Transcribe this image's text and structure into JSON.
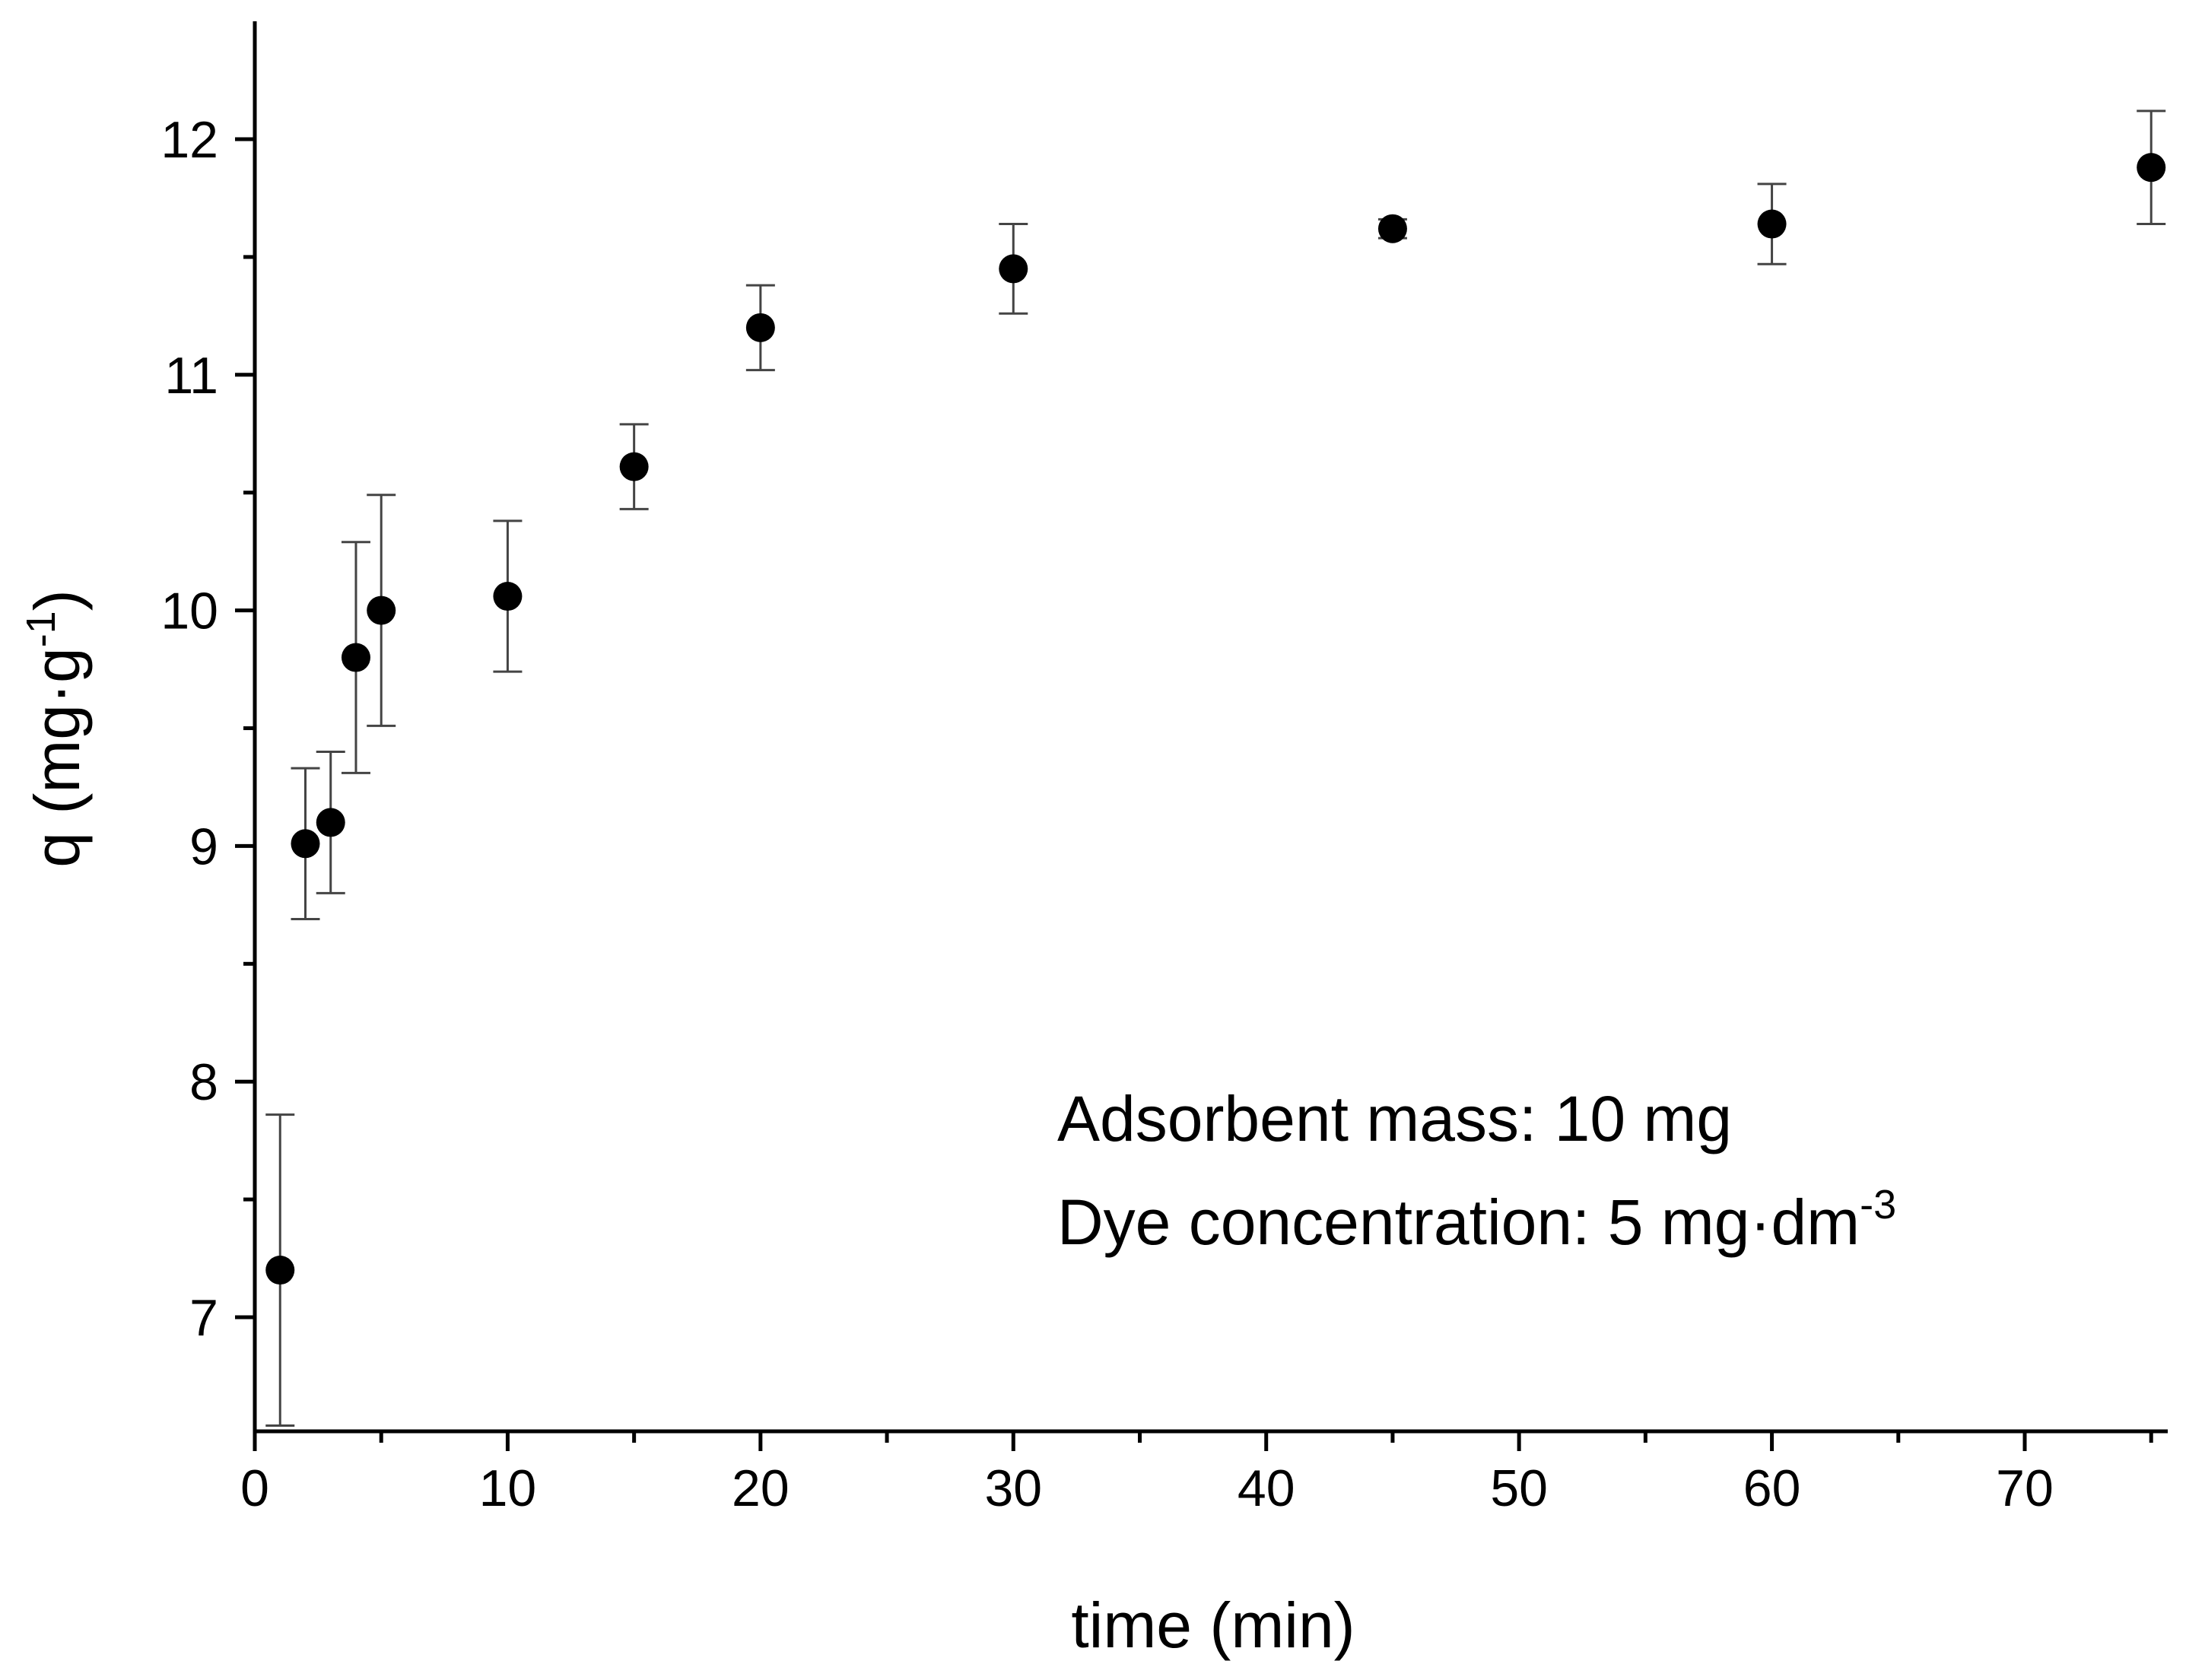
{
  "chart_data": {
    "type": "scatter",
    "title": "",
    "xlabel": "time (min)",
    "ylabel": {
      "main": "q (mg·g",
      "sup": "-1",
      "close": ")"
    },
    "xlim": [
      0,
      76
    ],
    "ylim": [
      6.5,
      12.5
    ],
    "x_ticks": [
      0,
      10,
      20,
      30,
      40,
      50,
      60,
      70
    ],
    "x_minor_ticks": [
      5,
      15,
      25,
      35,
      45,
      55,
      65,
      75
    ],
    "y_ticks": [
      7,
      8,
      9,
      10,
      11,
      12
    ],
    "y_minor_ticks": [
      7.5,
      8.5,
      9.5,
      10.5,
      11.5
    ],
    "grid": false,
    "legend": "none",
    "marker_color": "#000000",
    "error_bar_color": "#444444",
    "series": [
      {
        "x": [
          1,
          2,
          3,
          4,
          5,
          10,
          15,
          20,
          30,
          45,
          60,
          75
        ],
        "y": [
          7.2,
          9.01,
          9.1,
          9.8,
          10.0,
          10.06,
          10.61,
          11.2,
          11.45,
          11.62,
          11.64,
          11.88
        ],
        "error": [
          0.66,
          0.32,
          0.3,
          0.49,
          0.49,
          0.32,
          0.18,
          0.18,
          0.19,
          0.04,
          0.17,
          0.24
        ]
      }
    ],
    "annotations": [
      {
        "text": "Adsorbent mass: 10 mg"
      },
      {
        "text": "Dye concentration: 5 mg·dm",
        "sup": "-3"
      }
    ]
  }
}
